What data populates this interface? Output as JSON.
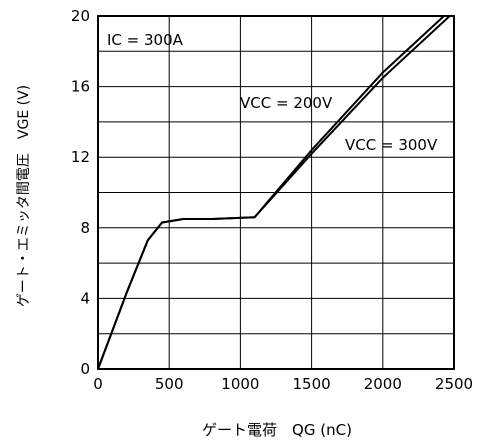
{
  "chart_data": {
    "type": "line",
    "xlabel": "ゲート電荷　QG (nC)",
    "ylabel": "ゲート・エミッタ間電圧　VGE (V)",
    "xlim": [
      0,
      2500
    ],
    "ylim": [
      0,
      20
    ],
    "x_ticks": [
      "0",
      "500",
      "1000",
      "1500",
      "2000",
      "2500"
    ],
    "y_ticks": [
      "0",
      "4",
      "8",
      "12",
      "16",
      "20"
    ],
    "grid": true,
    "annotations": {
      "condition": "IC = 300A",
      "series_200": "VCC = 200V",
      "series_300": "VCC = 300V"
    },
    "series": [
      {
        "name": "VCC = 200V",
        "x": [
          0,
          200,
          350,
          450,
          600,
          800,
          1100,
          1500,
          2000,
          2470
        ],
        "y": [
          0,
          4.3,
          7.3,
          8.3,
          8.5,
          8.5,
          8.6,
          12.2,
          16.5,
          20
        ]
      },
      {
        "name": "VCC = 300V",
        "x": [
          0,
          200,
          350,
          450,
          600,
          800,
          1100,
          1500,
          2000,
          2430
        ],
        "y": [
          0,
          4.3,
          7.3,
          8.3,
          8.5,
          8.5,
          8.6,
          12.4,
          16.8,
          20
        ]
      }
    ]
  }
}
